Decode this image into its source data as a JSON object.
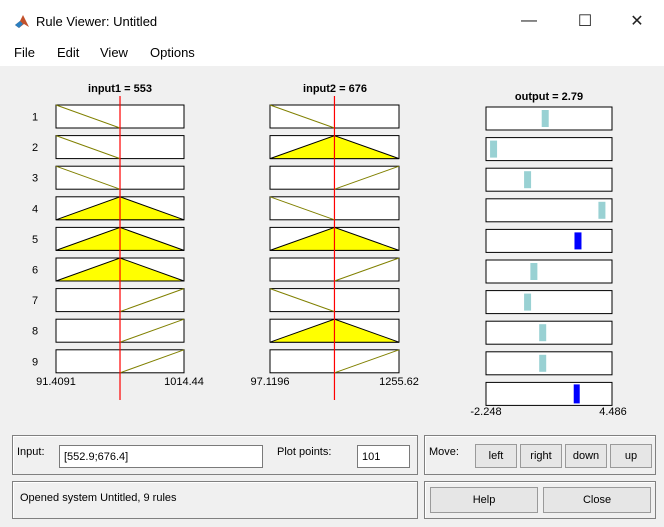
{
  "window": {
    "title": "Rule Viewer: Untitled",
    "minimize_glyph": "—",
    "maximize_glyph": "☐",
    "close_glyph": "✕"
  },
  "menu": {
    "items": [
      "File",
      "Edit",
      "View",
      "Options"
    ]
  },
  "plot": {
    "input1_title": "input1 = 553",
    "input2_title": "input2 = 676",
    "output_title": "output = 2.79",
    "rule_numbers": [
      "1",
      "2",
      "3",
      "4",
      "5",
      "6",
      "7",
      "8",
      "9"
    ],
    "input1_range": {
      "min": "91.4091",
      "max": "1014.44"
    },
    "input2_range": {
      "min": "97.1196",
      "max": "1255.62"
    },
    "output_range": {
      "min": "-2.248",
      "max": "4.486"
    },
    "input1_value": 553,
    "input2_value": 676,
    "output_value": 2.79,
    "input1_mfs": [
      "dec",
      "dec",
      "dec",
      "tri",
      "tri",
      "tri",
      "inc",
      "inc",
      "inc"
    ],
    "input2_mfs": [
      "dec",
      "tri",
      "inc",
      "dec",
      "tri",
      "inc",
      "dec",
      "tri",
      "inc"
    ],
    "rule_outputs_norm": [
      0.47,
      0.06,
      0.33,
      0.92,
      0.73,
      0.38,
      0.33,
      0.45,
      0.45
    ],
    "aggregated_output_norm": 0.72,
    "colors": {
      "fill": "#ffff00",
      "line_red": "#ff0000",
      "output_bar": "#99d1d3",
      "output_active": "#0000ff",
      "mf_line": "#808000"
    }
  },
  "input": {
    "label": "Input:",
    "value": "[552.9;676.4]"
  },
  "plot_points": {
    "label": "Plot points:",
    "value": "101"
  },
  "move": {
    "label": "Move:",
    "buttons": [
      "left",
      "right",
      "down",
      "up"
    ]
  },
  "status": {
    "text": "Opened system Untitled, 9 rules"
  },
  "actions": {
    "help": "Help",
    "close": "Close"
  }
}
